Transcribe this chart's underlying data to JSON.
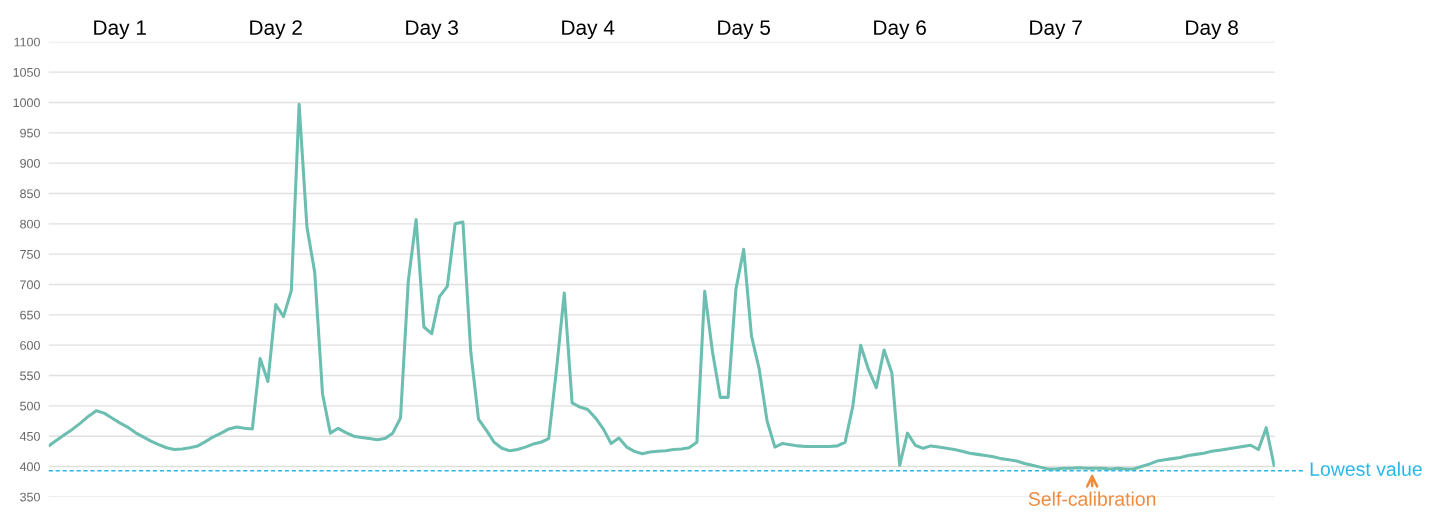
{
  "chart_data": {
    "type": "line",
    "categories": [
      null,
      null,
      null,
      null,
      null,
      null,
      null,
      null,
      null,
      "Day 1",
      null,
      null,
      null,
      null,
      null,
      null,
      null,
      null,
      null,
      null,
      null,
      null,
      null,
      null,
      null,
      null,
      null,
      null,
      null,
      "Day 2",
      null,
      null,
      null,
      null,
      null,
      null,
      null,
      null,
      null,
      null,
      null,
      null,
      null,
      null,
      null,
      null,
      null,
      null,
      null,
      "Day 3",
      null,
      null,
      null,
      null,
      null,
      null,
      null,
      null,
      null,
      null,
      null,
      null,
      null,
      null,
      null,
      null,
      null,
      null,
      null,
      "Day 4",
      null,
      null,
      null,
      null,
      null,
      null,
      null,
      null,
      null,
      null,
      null,
      null,
      null,
      null,
      null,
      null,
      null,
      null,
      null,
      "Day 5",
      null,
      null,
      null,
      null,
      null,
      null,
      null,
      null,
      null,
      null,
      null,
      null,
      null,
      null,
      null,
      null,
      null,
      null,
      null,
      "Day 6",
      null,
      null,
      null,
      null,
      null,
      null,
      null,
      null,
      null,
      null,
      null,
      null,
      null,
      null,
      null,
      null,
      null,
      null,
      null,
      "Day 7",
      null,
      null,
      null,
      null,
      null,
      null,
      null,
      null,
      null,
      null,
      null,
      null,
      null,
      null,
      null,
      null,
      null,
      null,
      null,
      "Day 8",
      null,
      null,
      null,
      null,
      null,
      null,
      null,
      null
    ],
    "series": [
      {
        "color": "#6cbfb0",
        "values": [
          435,
          444,
          453,
          462,
          472,
          483,
          492,
          488,
          480,
          472,
          465,
          456,
          449,
          442,
          436,
          431,
          428,
          429,
          431,
          434,
          441,
          449,
          455,
          462,
          465,
          463,
          462,
          578,
          540,
          667,
          647,
          690,
          997,
          795,
          720,
          520,
          455,
          463,
          456,
          450,
          448,
          446,
          444,
          446,
          455,
          480,
          706,
          807,
          630,
          619,
          680,
          697,
          800,
          803,
          590,
          478,
          460,
          440,
          430,
          426,
          428,
          432,
          437,
          440,
          446,
          560,
          686,
          505,
          498,
          494,
          480,
          462,
          438,
          447,
          432,
          425,
          421,
          424,
          425,
          426,
          428,
          429,
          431,
          440,
          689,
          589,
          514,
          514,
          692,
          758,
          615,
          560,
          475,
          432,
          438,
          436,
          434,
          433,
          433,
          433,
          433,
          434,
          440,
          500,
          600,
          560,
          530,
          592,
          554,
          402,
          455,
          435,
          430,
          434,
          432,
          430,
          428,
          425,
          422,
          420,
          418,
          416,
          413,
          411,
          409,
          405,
          402,
          399,
          396,
          396,
          397,
          397,
          398,
          397,
          397,
          397,
          396,
          397,
          396,
          396,
          400,
          404,
          409,
          411,
          413,
          415,
          418,
          420,
          422,
          425,
          427,
          429,
          431,
          433,
          435,
          428,
          464,
          402
        ]
      }
    ],
    "ylim": [
      350,
      1100
    ],
    "yticks": [
      350,
      400,
      450,
      500,
      550,
      600,
      650,
      700,
      750,
      800,
      850,
      900,
      950,
      1000,
      1050,
      1100
    ],
    "ref_lines": [
      {
        "axis": "y",
        "value": 393,
        "label": "Lowest value",
        "color": "#29b6e8",
        "line_style": "dashed"
      }
    ],
    "annotations": [
      "Self-calibration"
    ],
    "grid": "y",
    "line_style": "solid",
    "marker": "none",
    "legend": false
  }
}
